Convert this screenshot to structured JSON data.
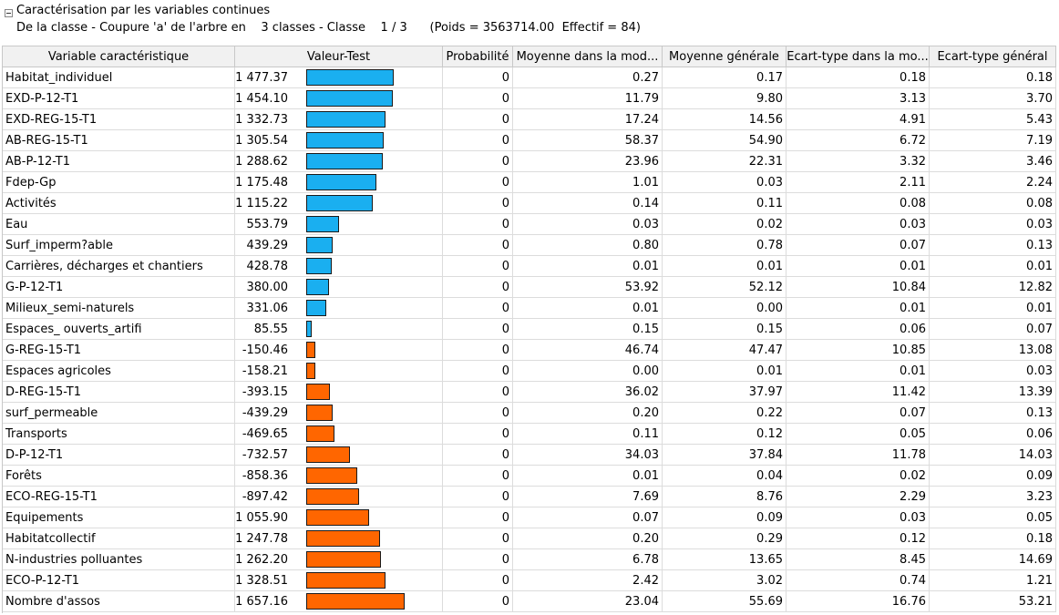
{
  "header": {
    "title": "Caractérisation par les variables continues",
    "subtitle_prefix": "De la classe - Coupure 'a' de l'arbre en",
    "subtitle_classes": "3 classes - Classe",
    "subtitle_class_index": "1 / 3",
    "subtitle_stats": "(Poids = 3563714.00  Effectif = 84)"
  },
  "columns": [
    "Variable caractéristique",
    "Valeur-Test",
    "Probabilité",
    "Moyenne dans la mod...",
    "Moyenne générale",
    "Ecart-type dans la mo...",
    "Ecart-type général"
  ],
  "colors": {
    "positive_bar": "#1aaff0",
    "negative_bar": "#ff6600"
  },
  "rows": [
    {
      "variable": "Habitat_individuel",
      "vt": "1 477.37",
      "vt_value": 1477.37,
      "prob": "0",
      "mean_mod": "0.27",
      "mean_gen": "0.17",
      "sd_mod": "0.18",
      "sd_gen": "0.18"
    },
    {
      "variable": "EXD-P-12-T1",
      "vt": "1 454.10",
      "vt_value": 1454.1,
      "prob": "0",
      "mean_mod": "11.79",
      "mean_gen": "9.80",
      "sd_mod": "3.13",
      "sd_gen": "3.70"
    },
    {
      "variable": "EXD-REG-15-T1",
      "vt": "1 332.73",
      "vt_value": 1332.73,
      "prob": "0",
      "mean_mod": "17.24",
      "mean_gen": "14.56",
      "sd_mod": "4.91",
      "sd_gen": "5.43"
    },
    {
      "variable": "AB-REG-15-T1",
      "vt": "1 305.54",
      "vt_value": 1305.54,
      "prob": "0",
      "mean_mod": "58.37",
      "mean_gen": "54.90",
      "sd_mod": "6.72",
      "sd_gen": "7.19"
    },
    {
      "variable": "AB-P-12-T1",
      "vt": "1 288.62",
      "vt_value": 1288.62,
      "prob": "0",
      "mean_mod": "23.96",
      "mean_gen": "22.31",
      "sd_mod": "3.32",
      "sd_gen": "3.46"
    },
    {
      "variable": "Fdep-Gp",
      "vt": "1 175.48",
      "vt_value": 1175.48,
      "prob": "0",
      "mean_mod": "1.01",
      "mean_gen": "0.03",
      "sd_mod": "2.11",
      "sd_gen": "2.24"
    },
    {
      "variable": "Activités",
      "vt": "1 115.22",
      "vt_value": 1115.22,
      "prob": "0",
      "mean_mod": "0.14",
      "mean_gen": "0.11",
      "sd_mod": "0.08",
      "sd_gen": "0.08"
    },
    {
      "variable": "Eau",
      "vt": "553.79",
      "vt_value": 553.79,
      "prob": "0",
      "mean_mod": "0.03",
      "mean_gen": "0.02",
      "sd_mod": "0.03",
      "sd_gen": "0.03"
    },
    {
      "variable": "Surf_imperm?able",
      "vt": "439.29",
      "vt_value": 439.29,
      "prob": "0",
      "mean_mod": "0.80",
      "mean_gen": "0.78",
      "sd_mod": "0.07",
      "sd_gen": "0.13"
    },
    {
      "variable": "Carrières, décharges et chantiers",
      "vt": "428.78",
      "vt_value": 428.78,
      "prob": "0",
      "mean_mod": "0.01",
      "mean_gen": "0.01",
      "sd_mod": "0.01",
      "sd_gen": "0.01"
    },
    {
      "variable": "G-P-12-T1",
      "vt": "380.00",
      "vt_value": 380.0,
      "prob": "0",
      "mean_mod": "53.92",
      "mean_gen": "52.12",
      "sd_mod": "10.84",
      "sd_gen": "12.82"
    },
    {
      "variable": "Milieux_semi-naturels",
      "vt": "331.06",
      "vt_value": 331.06,
      "prob": "0",
      "mean_mod": "0.01",
      "mean_gen": "0.00",
      "sd_mod": "0.01",
      "sd_gen": "0.01"
    },
    {
      "variable": "Espaces_ ouverts_artifi",
      "vt": "85.55",
      "vt_value": 85.55,
      "prob": "0",
      "mean_mod": "0.15",
      "mean_gen": "0.15",
      "sd_mod": "0.06",
      "sd_gen": "0.07"
    },
    {
      "variable": "G-REG-15-T1",
      "vt": "-150.46",
      "vt_value": -150.46,
      "prob": "0",
      "mean_mod": "46.74",
      "mean_gen": "47.47",
      "sd_mod": "10.85",
      "sd_gen": "13.08"
    },
    {
      "variable": "Espaces agricoles",
      "vt": "-158.21",
      "vt_value": -158.21,
      "prob": "0",
      "mean_mod": "0.00",
      "mean_gen": "0.01",
      "sd_mod": "0.01",
      "sd_gen": "0.03"
    },
    {
      "variable": "D-REG-15-T1",
      "vt": "-393.15",
      "vt_value": -393.15,
      "prob": "0",
      "mean_mod": "36.02",
      "mean_gen": "37.97",
      "sd_mod": "11.42",
      "sd_gen": "13.39"
    },
    {
      "variable": "surf_permeable",
      "vt": "-439.29",
      "vt_value": -439.29,
      "prob": "0",
      "mean_mod": "0.20",
      "mean_gen": "0.22",
      "sd_mod": "0.07",
      "sd_gen": "0.13"
    },
    {
      "variable": "Transports",
      "vt": "-469.65",
      "vt_value": -469.65,
      "prob": "0",
      "mean_mod": "0.11",
      "mean_gen": "0.12",
      "sd_mod": "0.05",
      "sd_gen": "0.06"
    },
    {
      "variable": "D-P-12-T1",
      "vt": "-732.57",
      "vt_value": -732.57,
      "prob": "0",
      "mean_mod": "34.03",
      "mean_gen": "37.84",
      "sd_mod": "11.78",
      "sd_gen": "14.03"
    },
    {
      "variable": "Forêts",
      "vt": "-858.36",
      "vt_value": -858.36,
      "prob": "0",
      "mean_mod": "0.01",
      "mean_gen": "0.04",
      "sd_mod": "0.02",
      "sd_gen": "0.09"
    },
    {
      "variable": "ECO-REG-15-T1",
      "vt": "-897.42",
      "vt_value": -897.42,
      "prob": "0",
      "mean_mod": "7.69",
      "mean_gen": "8.76",
      "sd_mod": "2.29",
      "sd_gen": "3.23"
    },
    {
      "variable": "Equipements",
      "vt": "-1 055.90",
      "vt_value": -1055.9,
      "prob": "0",
      "mean_mod": "0.07",
      "mean_gen": "0.09",
      "sd_mod": "0.03",
      "sd_gen": "0.05"
    },
    {
      "variable": "Habitatcollectif",
      "vt": "-1 247.78",
      "vt_value": -1247.78,
      "prob": "0",
      "mean_mod": "0.20",
      "mean_gen": "0.29",
      "sd_mod": "0.12",
      "sd_gen": "0.18"
    },
    {
      "variable": "N-industries polluantes",
      "vt": "-1 262.20",
      "vt_value": -1262.2,
      "prob": "0",
      "mean_mod": "6.78",
      "mean_gen": "13.65",
      "sd_mod": "8.45",
      "sd_gen": "14.69"
    },
    {
      "variable": "ECO-P-12-T1",
      "vt": "-1 328.51",
      "vt_value": -1328.51,
      "prob": "0",
      "mean_mod": "2.42",
      "mean_gen": "3.02",
      "sd_mod": "0.74",
      "sd_gen": "1.21"
    },
    {
      "variable": "Nombre d'assos",
      "vt": "-1 657.16",
      "vt_value": -1657.16,
      "prob": "0",
      "mean_mod": "23.04",
      "mean_gen": "55.69",
      "sd_mod": "16.76",
      "sd_gen": "53.21"
    }
  ]
}
